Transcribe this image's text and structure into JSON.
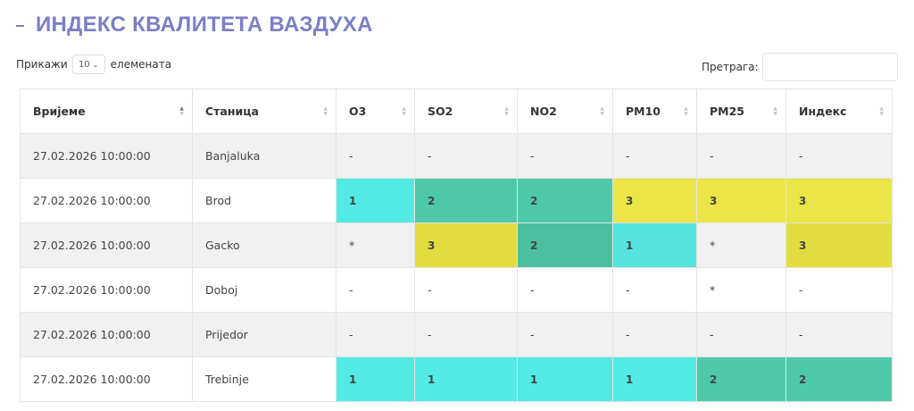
{
  "title": "ИНДЕКС КВАЛИТЕТА ВАЗДУХА",
  "length": {
    "label_before": "Прикажи",
    "value": "10",
    "label_after": "елемената"
  },
  "search": {
    "label": "Претрага:",
    "value": ""
  },
  "colors": {
    "level_1": "#52ebe4",
    "level_2": "#4ec9a8",
    "level_3": "#ebe547",
    "title": "#7b7fc7"
  },
  "table": {
    "columns": [
      "Вријеме",
      "Станица",
      "O3",
      "SO2",
      "NO2",
      "PM10",
      "PM25",
      "Индекс"
    ],
    "rows": [
      {
        "time": "27.02.2026 10:00:00",
        "station": "Banjaluka",
        "o3": "-",
        "so2": "-",
        "no2": "-",
        "pm10": "-",
        "pm25": "-",
        "index": "-"
      },
      {
        "time": "27.02.2026 10:00:00",
        "station": "Brod",
        "o3": "1",
        "so2": "2",
        "no2": "2",
        "pm10": "3",
        "pm25": "3",
        "index": "3"
      },
      {
        "time": "27.02.2026 10:00:00",
        "station": "Gacko",
        "o3": "*",
        "so2": "3",
        "no2": "2",
        "pm10": "1",
        "pm25": "*",
        "index": "3"
      },
      {
        "time": "27.02.2026 10:00:00",
        "station": "Doboj",
        "o3": "-",
        "so2": "-",
        "no2": "-",
        "pm10": "-",
        "pm25": "*",
        "index": "-"
      },
      {
        "time": "27.02.2026 10:00:00",
        "station": "Prijedor",
        "o3": "-",
        "so2": "-",
        "no2": "-",
        "pm10": "-",
        "pm25": "-",
        "index": "-"
      },
      {
        "time": "27.02.2026 10:00:00",
        "station": "Trebinje",
        "o3": "1",
        "so2": "1",
        "no2": "1",
        "pm10": "1",
        "pm25": "2",
        "index": "2"
      }
    ]
  }
}
